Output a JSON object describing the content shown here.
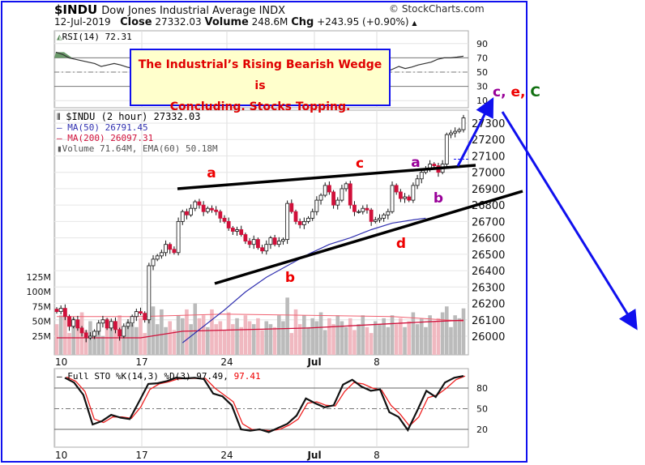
{
  "header": {
    "symbol": "$INDU",
    "name": "Dow Jones Industrial Average INDX",
    "source": "© StockCharts.com",
    "date": "12-Jul-2019",
    "close_label": "Close",
    "close_value": "27332.03",
    "volume_label": "Volume",
    "volume_value": "248.6M",
    "chg_label": "Chg",
    "chg_value": "+243.95 (+0.90%)",
    "chg_arrow": "▲"
  },
  "callout": {
    "line1": "The Industrial’s Rising Bearish Wedge is",
    "line2": "Concluding. Stocks Topping."
  },
  "colors": {
    "up": "#ffffff",
    "down": "#d0103a",
    "ma50": "#3030b0",
    "ma200": "#d0103a",
    "annot_red": "#ee0000",
    "annot_purple": "#990099",
    "annot_green": "#107010",
    "arrow": "#1010ee",
    "frame": "#1010ee"
  },
  "chart_data": [
    {
      "type": "line",
      "panel": "rsi",
      "legend": "RSI(14) 72.31",
      "yticks": [
        "90",
        "70",
        "50",
        "30",
        "10"
      ],
      "ytick_values": [
        90,
        70,
        50,
        30,
        10
      ],
      "ylim": [
        0,
        100
      ],
      "values": [
        78,
        75,
        70,
        68,
        66,
        64,
        62,
        58,
        60,
        62,
        60,
        57,
        55,
        56,
        58,
        62,
        66,
        70,
        72,
        70,
        68,
        66,
        64,
        62,
        60,
        58,
        60,
        58,
        56,
        54,
        55,
        58,
        56,
        52,
        50,
        48,
        47,
        50,
        52,
        55,
        58,
        60,
        58,
        56,
        54,
        52,
        50,
        48,
        46,
        47,
        49,
        50,
        54,
        58,
        55,
        57,
        60,
        62,
        64,
        68,
        70,
        70,
        71,
        72.31
      ]
    },
    {
      "type": "candlestick",
      "panel": "price",
      "legend": "$INDU (2 hour) 27332.03",
      "ma50_label": "MA(50) 26791.45",
      "ma200_label": "MA(200) 26097.31",
      "volume_label": "Volume 71.64M, EMA(60) 50.18M",
      "yticks": [
        "27300",
        "27200",
        "27100",
        "27000",
        "26900",
        "26800",
        "26700",
        "26600",
        "26500",
        "26400",
        "26300",
        "26200",
        "26100",
        "26000"
      ],
      "ytick_values": [
        27300,
        27200,
        27100,
        27000,
        26900,
        26800,
        26700,
        26600,
        26500,
        26400,
        26300,
        26200,
        26100,
        26000
      ],
      "ylim": [
        25960,
        27350
      ],
      "volume_ticks": [
        "125M",
        "100M",
        "75M",
        "50M",
        "25M"
      ],
      "volume_tick_values": [
        125,
        100,
        75,
        50,
        25
      ],
      "closes": [
        26150,
        26170,
        26120,
        26060,
        26100,
        26050,
        26020,
        25990,
        26000,
        26030,
        26080,
        26100,
        26050,
        26090,
        26040,
        26000,
        26060,
        26080,
        26120,
        26150,
        26140,
        26100,
        26430,
        26470,
        26490,
        26510,
        26560,
        26530,
        26510,
        26700,
        26760,
        26740,
        26780,
        26820,
        26800,
        26760,
        26780,
        26770,
        26760,
        26720,
        26700,
        26660,
        26640,
        26650,
        26620,
        26580,
        26560,
        26590,
        26540,
        26520,
        26560,
        26600,
        26560,
        26580,
        26590,
        26810,
        26760,
        26700,
        26680,
        26700,
        26720,
        26760,
        26830,
        26860,
        26920,
        26880,
        26800,
        26830,
        26900,
        26930,
        26800,
        26760,
        26760,
        26780,
        26770,
        26700,
        26710,
        26720,
        26740,
        26760,
        26920,
        26880,
        26840,
        26850,
        26830,
        26920,
        26960,
        27000,
        27020,
        27050,
        27040,
        27000,
        27050,
        27230,
        27240,
        27250,
        27260,
        27332.03
      ],
      "volumes": [
        45,
        60,
        70,
        30,
        55,
        40,
        65,
        35,
        50,
        30,
        45,
        25,
        55,
        40,
        35,
        60,
        30,
        50,
        45,
        40,
        55,
        30,
        65,
        75,
        45,
        70,
        40,
        50,
        35,
        60,
        55,
        70,
        45,
        80,
        55,
        60,
        40,
        70,
        45,
        50,
        35,
        65,
        45,
        55,
        40,
        60,
        50,
        45,
        55,
        35,
        50,
        45,
        40,
        60,
        50,
        90,
        30,
        70,
        45,
        60,
        40,
        55,
        50,
        65,
        35,
        55,
        45,
        60,
        50,
        40,
        55,
        35,
        45,
        60,
        40,
        30,
        50,
        45,
        55,
        40,
        60,
        45,
        55,
        40,
        50,
        65,
        45,
        55,
        40,
        60,
        50,
        55,
        65,
        75,
        40,
        60,
        55,
        71.64
      ],
      "ma50": [
        [
          30,
          25960
        ],
        [
          35,
          26060
        ],
        [
          40,
          26160
        ],
        [
          45,
          26270
        ],
        [
          50,
          26360
        ],
        [
          55,
          26430
        ],
        [
          60,
          26500
        ],
        [
          65,
          26560
        ],
        [
          70,
          26600
        ],
        [
          75,
          26650
        ],
        [
          80,
          26690
        ],
        [
          85,
          26710
        ],
        [
          88,
          26720
        ]
      ],
      "ma200": [
        [
          0,
          25990
        ],
        [
          20,
          25990
        ],
        [
          30,
          26030
        ],
        [
          45,
          26040
        ],
        [
          60,
          26050
        ],
        [
          75,
          26070
        ],
        [
          90,
          26090
        ],
        [
          97,
          26097.31
        ]
      ],
      "volume_ema": [
        [
          0,
          58
        ],
        [
          20,
          58
        ],
        [
          40,
          62
        ],
        [
          60,
          60
        ],
        [
          80,
          58
        ],
        [
          97,
          50.18
        ]
      ],
      "annotations": [
        {
          "text": "a",
          "color": "red"
        },
        {
          "text": "b",
          "color": "red"
        },
        {
          "text": "c",
          "color": "red"
        },
        {
          "text": "d",
          "color": "red"
        },
        {
          "text": "a",
          "color": "purple"
        },
        {
          "text": "b",
          "color": "purple"
        }
      ],
      "projection_labels": [
        {
          "text": "c,",
          "color": "purple"
        },
        {
          "text": "e,",
          "color": "red"
        },
        {
          "text": "C",
          "color": "green"
        }
      ]
    },
    {
      "type": "line",
      "panel": "stochastic",
      "legend": "Full STO %K(14,3) %D(3) 97.49,",
      "legend_d": "97.41",
      "yticks": [
        "80",
        "50",
        "20"
      ],
      "ytick_values": [
        80,
        50,
        20
      ],
      "ylim": [
        0,
        100
      ],
      "k": [
        95,
        88,
        70,
        27,
        32,
        41,
        37,
        35,
        60,
        86,
        87,
        90,
        95,
        94,
        95,
        93,
        72,
        68,
        55,
        20,
        18,
        20,
        16,
        22,
        28,
        40,
        65,
        58,
        52,
        55,
        85,
        92,
        82,
        76,
        78,
        45,
        38,
        19,
        47,
        76,
        67,
        88,
        95,
        97.49
      ],
      "d": [
        96,
        90,
        75,
        35,
        30,
        38,
        38,
        36,
        52,
        78,
        86,
        89,
        93,
        94,
        94,
        94,
        80,
        70,
        60,
        28,
        20,
        19,
        18,
        20,
        26,
        35,
        58,
        60,
        55,
        54,
        75,
        88,
        86,
        80,
        77,
        55,
        42,
        25,
        38,
        66,
        70,
        80,
        92,
        97.41
      ]
    }
  ],
  "xaxis": {
    "ticks": [
      "10",
      "17",
      "24",
      "Jul",
      "8"
    ]
  }
}
